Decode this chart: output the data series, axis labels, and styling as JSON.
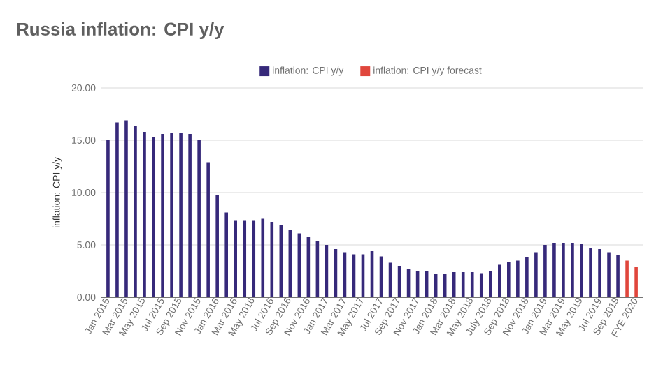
{
  "chart_data": {
    "type": "bar",
    "title": "Russia inflation: CPI y/y",
    "ylabel": "inflation: CPI y/y",
    "categories": [
      "Jan 2015",
      null,
      "Mar 2015",
      null,
      "May 2015",
      null,
      "Jul 2015",
      null,
      "Sep 2015",
      null,
      "Nov 2015",
      null,
      "Jan 2016",
      null,
      "Mar 2016",
      null,
      "May 2016",
      null,
      "Jul 2016",
      null,
      "Sep 2016",
      null,
      "Nov 2016",
      null,
      "Jan 2017",
      null,
      "Mar 2017",
      null,
      "May 2017",
      null,
      "Jul 2017",
      null,
      "Sep 2017",
      null,
      "Nov 2017",
      null,
      "Jan 2018",
      null,
      "Mar 2018",
      null,
      "May 2018",
      null,
      "July 2018",
      null,
      "Sep 2018",
      null,
      "Nov 2018",
      null,
      "Jan 2019",
      null,
      "Mar 2019",
      null,
      "May 2019",
      null,
      "Jul 2019",
      null,
      "Sep 2019",
      null,
      "FYE 2020"
    ],
    "series": [
      {
        "name": "inflation: CPI y/y",
        "color": "#36297a",
        "values": [
          15.0,
          16.7,
          16.9,
          16.4,
          15.8,
          15.3,
          15.6,
          15.7,
          15.7,
          15.6,
          15.0,
          12.9,
          9.8,
          8.1,
          7.3,
          7.3,
          7.3,
          7.5,
          7.2,
          6.9,
          6.4,
          6.1,
          5.8,
          5.4,
          5.0,
          4.6,
          4.3,
          4.1,
          4.1,
          4.4,
          3.9,
          3.3,
          3.0,
          2.7,
          2.5,
          2.5,
          2.2,
          2.2,
          2.4,
          2.4,
          2.4,
          2.3,
          2.5,
          3.1,
          3.4,
          3.5,
          3.8,
          4.3,
          5.0,
          5.2,
          5.2,
          5.2,
          5.1,
          4.7,
          4.6,
          4.3,
          4.0,
          null,
          null
        ]
      },
      {
        "name": "inflation: CPI y/y forecast",
        "color": "#e0463c",
        "values": [
          null,
          null,
          null,
          null,
          null,
          null,
          null,
          null,
          null,
          null,
          null,
          null,
          null,
          null,
          null,
          null,
          null,
          null,
          null,
          null,
          null,
          null,
          null,
          null,
          null,
          null,
          null,
          null,
          null,
          null,
          null,
          null,
          null,
          null,
          null,
          null,
          null,
          null,
          null,
          null,
          null,
          null,
          null,
          null,
          null,
          null,
          null,
          null,
          null,
          null,
          null,
          null,
          null,
          null,
          null,
          null,
          null,
          3.5,
          2.9
        ]
      }
    ],
    "ylim": [
      0,
      20
    ],
    "yticks": [
      {
        "value": 0,
        "label": "0.00"
      },
      {
        "value": 5,
        "label": "5.00"
      },
      {
        "value": 10,
        "label": "10.00"
      },
      {
        "value": 15,
        "label": "15.00"
      },
      {
        "value": 20,
        "label": "20.00"
      }
    ],
    "grid": "y",
    "legend": "top"
  }
}
